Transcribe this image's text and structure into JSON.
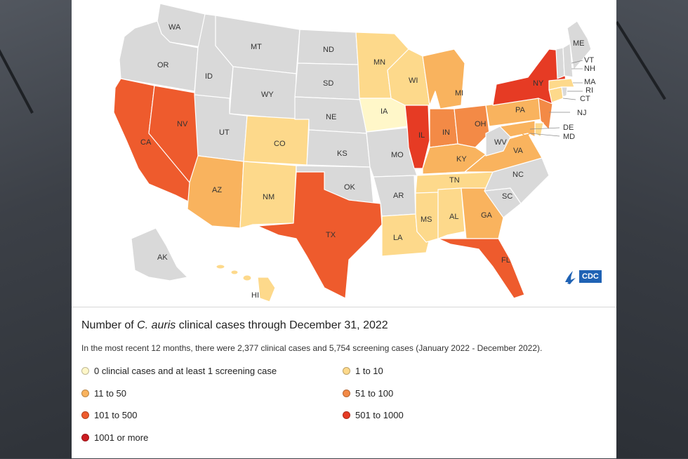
{
  "legend": {
    "title_prefix": "Number of ",
    "title_italic": "C. auris",
    "title_suffix": " clinical cases through December 31, 2022",
    "subtitle": "In the most recent 12 months, there were 2,377 clinical cases and 5,754 screening cases (January 2022 - December 2022).",
    "items": [
      {
        "label": "0 clincial cases and at least 1 screening case",
        "color": "#fff7c9"
      },
      {
        "label": "1 to 10",
        "color": "#fdd98b"
      },
      {
        "label": "11 to 50",
        "color": "#f9b35e"
      },
      {
        "label": "51 to 100",
        "color": "#f38a46"
      },
      {
        "label": "101 to 500",
        "color": "#ee5b2d"
      },
      {
        "label": "501 to 1000",
        "color": "#e63b24"
      },
      {
        "label": "1001 or more",
        "color": "#cc1b20"
      }
    ]
  },
  "logo": {
    "text": "CDC"
  },
  "colors": {
    "no_data": "#d9d9d9",
    "border": "#ffffff"
  },
  "states": [
    {
      "abbr": "WA",
      "color": "#d9d9d9"
    },
    {
      "abbr": "OR",
      "color": "#d9d9d9"
    },
    {
      "abbr": "CA",
      "color": "#ee5b2d"
    },
    {
      "abbr": "NV",
      "color": "#ee5b2d"
    },
    {
      "abbr": "ID",
      "color": "#d9d9d9"
    },
    {
      "abbr": "MT",
      "color": "#d9d9d9"
    },
    {
      "abbr": "WY",
      "color": "#d9d9d9"
    },
    {
      "abbr": "UT",
      "color": "#d9d9d9"
    },
    {
      "abbr": "AZ",
      "color": "#f9b35e"
    },
    {
      "abbr": "CO",
      "color": "#fdd98b"
    },
    {
      "abbr": "NM",
      "color": "#fdd98b"
    },
    {
      "abbr": "ND",
      "color": "#d9d9d9"
    },
    {
      "abbr": "SD",
      "color": "#d9d9d9"
    },
    {
      "abbr": "NE",
      "color": "#d9d9d9"
    },
    {
      "abbr": "KS",
      "color": "#d9d9d9"
    },
    {
      "abbr": "OK",
      "color": "#d9d9d9"
    },
    {
      "abbr": "TX",
      "color": "#ee5b2d"
    },
    {
      "abbr": "MN",
      "color": "#fdd98b"
    },
    {
      "abbr": "IA",
      "color": "#fff7c9"
    },
    {
      "abbr": "MO",
      "color": "#d9d9d9"
    },
    {
      "abbr": "AR",
      "color": "#d9d9d9"
    },
    {
      "abbr": "LA",
      "color": "#fdd98b"
    },
    {
      "abbr": "WI",
      "color": "#fdd98b"
    },
    {
      "abbr": "IL",
      "color": "#e63b24"
    },
    {
      "abbr": "MS",
      "color": "#fdd98b"
    },
    {
      "abbr": "MI",
      "color": "#f9b35e"
    },
    {
      "abbr": "IN",
      "color": "#f38a46"
    },
    {
      "abbr": "OH",
      "color": "#f38a46"
    },
    {
      "abbr": "KY",
      "color": "#f9b35e"
    },
    {
      "abbr": "TN",
      "color": "#fdd98b"
    },
    {
      "abbr": "AL",
      "color": "#fdd98b"
    },
    {
      "abbr": "GA",
      "color": "#f9b35e"
    },
    {
      "abbr": "FL",
      "color": "#ee5b2d"
    },
    {
      "abbr": "SC",
      "color": "#d9d9d9"
    },
    {
      "abbr": "NC",
      "color": "#d9d9d9"
    },
    {
      "abbr": "VA",
      "color": "#f9b35e"
    },
    {
      "abbr": "WV",
      "color": "#d9d9d9"
    },
    {
      "abbr": "PA",
      "color": "#f9b35e"
    },
    {
      "abbr": "NY",
      "color": "#e63b24"
    },
    {
      "abbr": "NJ",
      "color": "#f38a46"
    },
    {
      "abbr": "DE",
      "color": "#fdd98b"
    },
    {
      "abbr": "MD",
      "color": "#f9b35e"
    },
    {
      "abbr": "CT",
      "color": "#fdd98b"
    },
    {
      "abbr": "RI",
      "color": "#d9d9d9"
    },
    {
      "abbr": "MA",
      "color": "#fdd98b"
    },
    {
      "abbr": "VT",
      "color": "#d9d9d9"
    },
    {
      "abbr": "NH",
      "color": "#d9d9d9"
    },
    {
      "abbr": "ME",
      "color": "#d9d9d9"
    },
    {
      "abbr": "AK",
      "color": "#d9d9d9"
    },
    {
      "abbr": "HI",
      "color": "#fdd98b"
    }
  ]
}
